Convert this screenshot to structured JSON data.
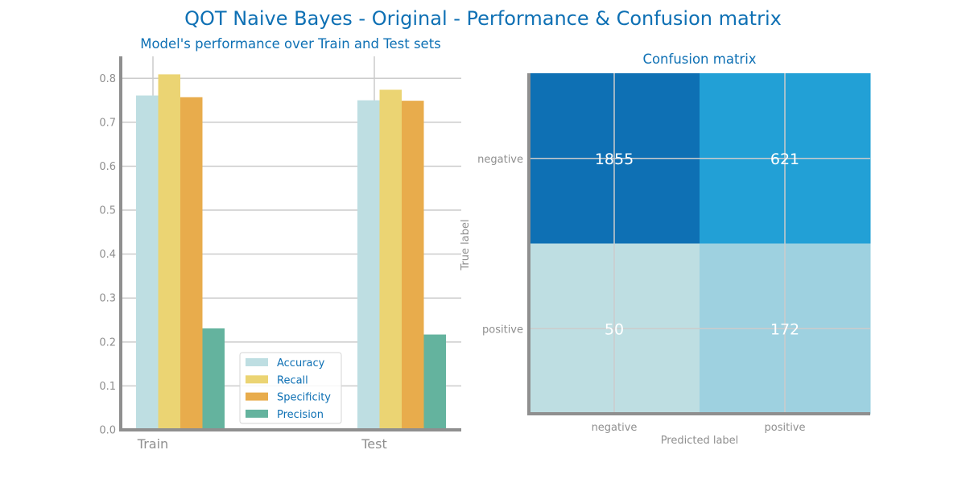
{
  "figure": {
    "title": "QOT Naive Bayes - Original - Performance & Confusion matrix"
  },
  "colors": {
    "title": "#0e70b4",
    "tick_text": "#8f8f8f",
    "axis": "#8f8f8f",
    "grid": "#cccccc",
    "cell_text": "#ffffff"
  },
  "chart_data": [
    {
      "type": "bar",
      "title": "Model's performance over Train and Test sets",
      "xlabel": "",
      "ylabel": "",
      "categories": [
        "Train",
        "Test"
      ],
      "series": [
        {
          "name": "Accuracy",
          "values": [
            0.761,
            0.75
          ],
          "color": "#bedee2"
        },
        {
          "name": "Recall",
          "values": [
            0.809,
            0.774
          ],
          "color": "#ebd473"
        },
        {
          "name": "Specificity",
          "values": [
            0.757,
            0.749
          ],
          "color": "#e8ac4c"
        },
        {
          "name": "Precision",
          "values": [
            0.231,
            0.217
          ],
          "color": "#64b39e"
        }
      ],
      "ylim": [
        0,
        0.85
      ],
      "yticks": [
        "0.0",
        "0.1",
        "0.2",
        "0.3",
        "0.4",
        "0.5",
        "0.6",
        "0.7",
        "0.8"
      ],
      "grid": true,
      "legend_position": "bottom-center"
    },
    {
      "type": "heatmap",
      "title": "Confusion matrix",
      "xlabel": "Predicted label",
      "ylabel": "True label",
      "x_categories": [
        "negative",
        "positive"
      ],
      "y_categories": [
        "negative",
        "positive"
      ],
      "values": [
        [
          1855,
          621
        ],
        [
          50,
          172
        ]
      ],
      "cell_colors": [
        [
          "#0e70b4",
          "#22a0d6"
        ],
        [
          "#bedee2",
          "#9ed1e0"
        ]
      ],
      "grid": true
    }
  ]
}
